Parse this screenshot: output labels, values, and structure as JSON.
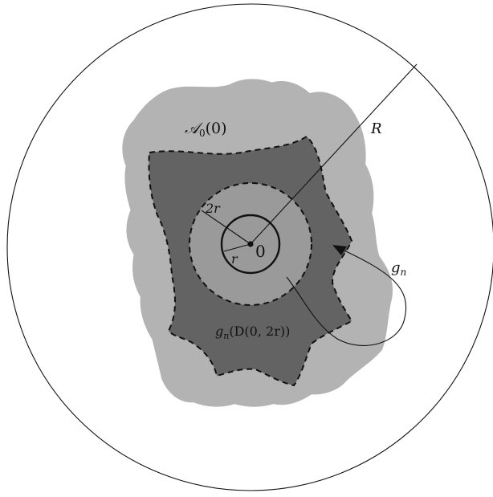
{
  "labels": {
    "attractor_name": "𝒜",
    "attractor_sub": "0",
    "attractor_arg": "(0)",
    "big_radius": "R",
    "double_radius": "2r",
    "small_radius": "r",
    "origin": "0",
    "map_name": "g",
    "map_sub": "n",
    "image_g": "g",
    "image_sub": "n",
    "image_arg": "(D(0, 2r))"
  },
  "colors": {
    "outer_region": "#b3b3b3",
    "image_region": "#636363",
    "disk_region": "#9a9a9a",
    "stroke": "#111111"
  }
}
